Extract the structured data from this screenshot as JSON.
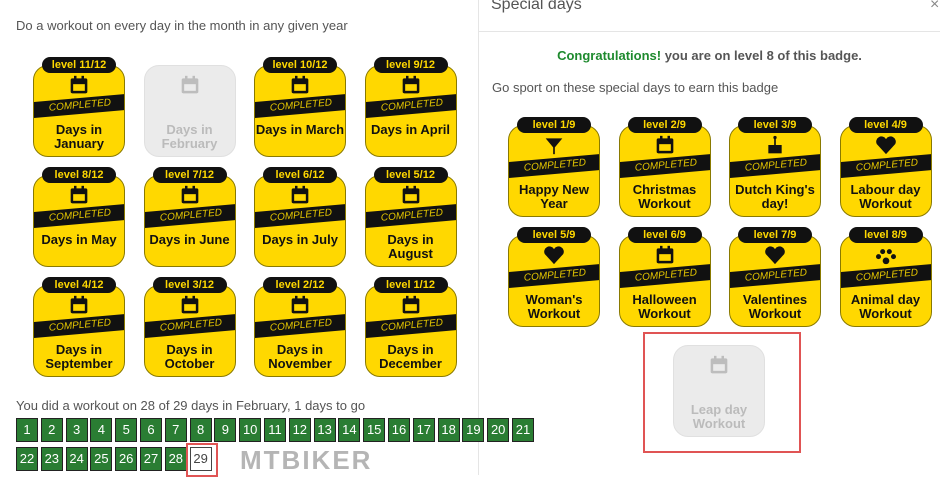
{
  "left": {
    "title": "Do a workout on every day in the month in any given year",
    "badges": [
      {
        "level": "level 11/12",
        "label": "Days in January",
        "completed": true,
        "icon": "calendar-icon"
      },
      {
        "level": "",
        "label": "Days in February",
        "completed": false,
        "icon": "calendar-icon"
      },
      {
        "level": "level 10/12",
        "label": "Days in March",
        "completed": true,
        "icon": "calendar-icon"
      },
      {
        "level": "level 9/12",
        "label": "Days in April",
        "completed": true,
        "icon": "calendar-icon"
      },
      {
        "level": "level 8/12",
        "label": "Days in May",
        "completed": true,
        "icon": "calendar-icon"
      },
      {
        "level": "level 7/12",
        "label": "Days in June",
        "completed": true,
        "icon": "calendar-icon"
      },
      {
        "level": "level 6/12",
        "label": "Days in July",
        "completed": true,
        "icon": "calendar-icon"
      },
      {
        "level": "level 5/12",
        "label": "Days in August",
        "completed": true,
        "icon": "calendar-icon"
      },
      {
        "level": "level 4/12",
        "label": "Days in September",
        "completed": true,
        "icon": "calendar-icon"
      },
      {
        "level": "level 3/12",
        "label": "Days in October",
        "completed": true,
        "icon": "calendar-icon"
      },
      {
        "level": "level 2/12",
        "label": "Days in November",
        "completed": true,
        "icon": "calendar-icon"
      },
      {
        "level": "level 1/12",
        "label": "Days in December",
        "completed": true,
        "icon": "calendar-icon"
      }
    ],
    "summary": "You did a workout on 28 of 29 days in February, 1 days to go",
    "days": [
      "1",
      "2",
      "3",
      "4",
      "5",
      "6",
      "7",
      "8",
      "9",
      "10",
      "11",
      "12",
      "13",
      "14",
      "15",
      "16",
      "17",
      "18",
      "19",
      "20",
      "21",
      "22",
      "23",
      "24",
      "25",
      "26",
      "27",
      "28",
      "29"
    ],
    "days_done": 28,
    "watermark": "MTBIKER"
  },
  "right": {
    "title": "Special days",
    "close": "×",
    "congrats_strong": "Congratulations!",
    "congrats_rest": " you are on level 8 of this badge.",
    "intro": "Go sport on these special days to earn this badge",
    "badges": [
      {
        "level": "level 1/9",
        "label": "Happy New Year",
        "completed": true,
        "icon": "cocktail-icon"
      },
      {
        "level": "level 2/9",
        "label": "Christmas Workout",
        "completed": true,
        "icon": "calendar-icon"
      },
      {
        "level": "level 3/9",
        "label": "Dutch King's day!",
        "completed": true,
        "icon": "cake-icon"
      },
      {
        "level": "level 4/9",
        "label": "Labour day Workout",
        "completed": true,
        "icon": "heart-icon"
      },
      {
        "level": "level 5/9",
        "label": "Woman's Workout",
        "completed": true,
        "icon": "heart-icon"
      },
      {
        "level": "level 6/9",
        "label": "Halloween Workout",
        "completed": true,
        "icon": "calendar-icon"
      },
      {
        "level": "level 7/9",
        "label": "Valentines Workout",
        "completed": true,
        "icon": "heart-icon"
      },
      {
        "level": "level 8/9",
        "label": "Animal day Workout",
        "completed": true,
        "icon": "paw-icon"
      },
      {
        "level": "",
        "label": "Leap day Workout",
        "completed": false,
        "icon": "calendar-icon"
      }
    ]
  },
  "completed_text": "COMPLETED",
  "colors": {
    "badge": "#ffd800",
    "done_day": "#2a7d33",
    "congrats": "#1e8a2e",
    "highlight": "#e05454"
  }
}
